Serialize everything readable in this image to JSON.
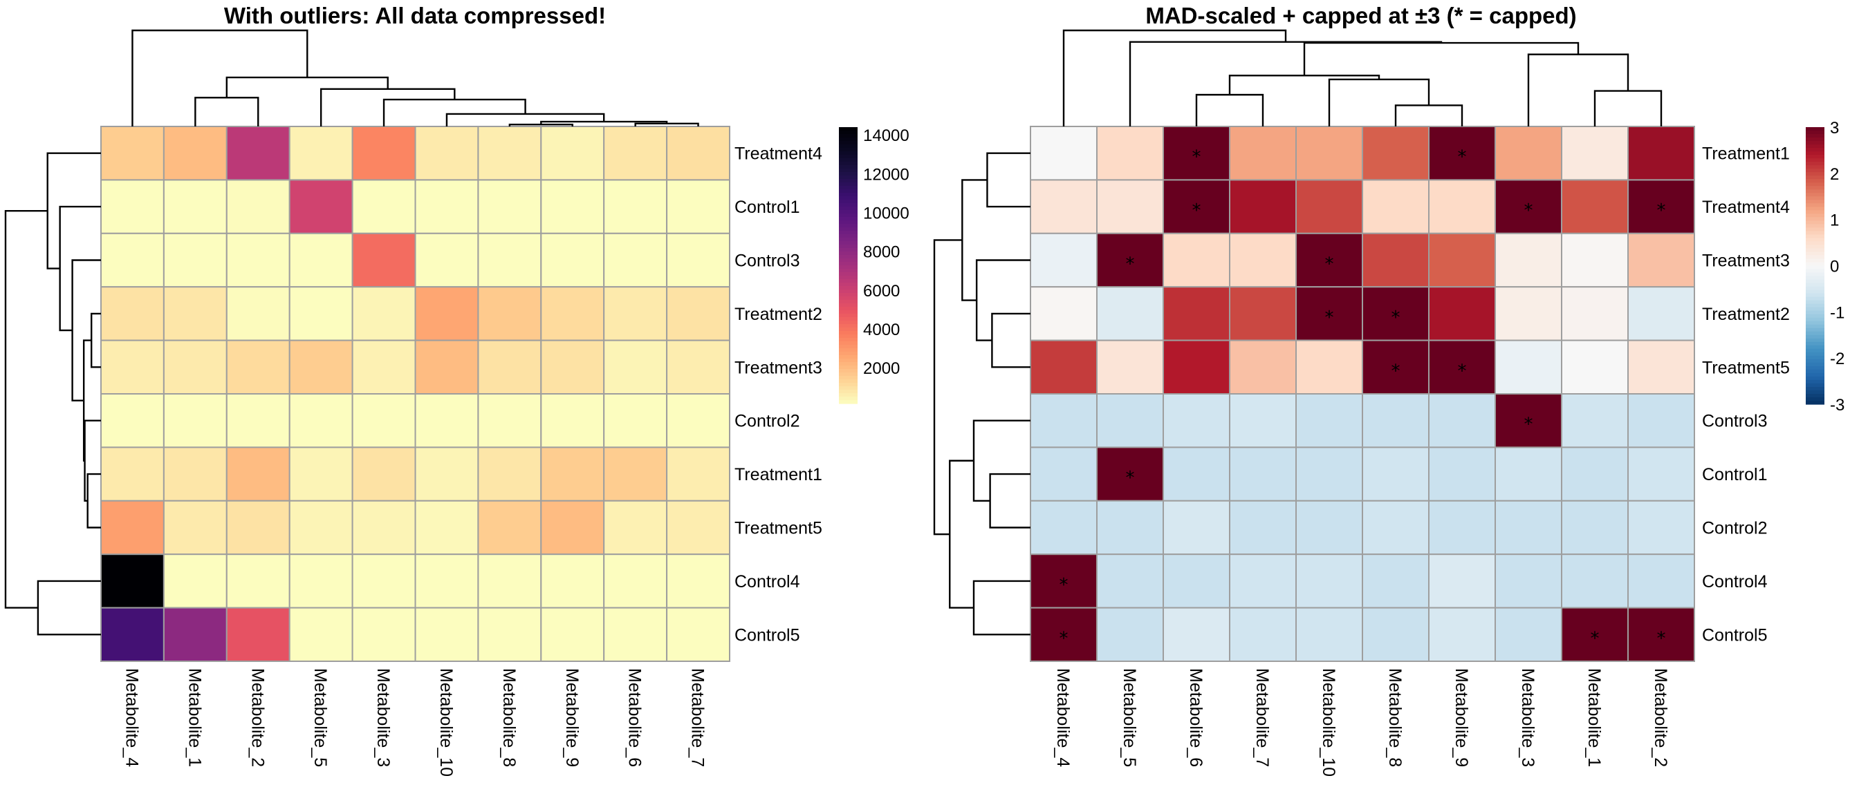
{
  "chart_data": [
    {
      "type": "heatmap",
      "title": "With outliers: All data compressed!",
      "colormap": "magma (reversed)",
      "rows": [
        "Treatment4",
        "Control1",
        "Control3",
        "Treatment2",
        "Treatment3",
        "Control2",
        "Treatment1",
        "Treatment5",
        "Control4",
        "Control5"
      ],
      "columns": [
        "Metabolite_4",
        "Metabolite_1",
        "Metabolite_2",
        "Metabolite_5",
        "Metabolite_3",
        "Metabolite_10",
        "Metabolite_8",
        "Metabolite_9",
        "Metabolite_6",
        "Metabolite_7"
      ],
      "values": [
        [
          1500,
          2000,
          6500,
          500,
          3500,
          700,
          600,
          400,
          800,
          1000
        ],
        [
          150,
          150,
          200,
          5800,
          150,
          150,
          150,
          150,
          150,
          150
        ],
        [
          150,
          150,
          150,
          150,
          4200,
          150,
          150,
          150,
          150,
          150
        ],
        [
          900,
          800,
          200,
          150,
          400,
          2600,
          1600,
          1100,
          700,
          900
        ],
        [
          600,
          700,
          1100,
          1500,
          500,
          2000,
          900,
          900,
          400,
          600
        ],
        [
          150,
          150,
          150,
          150,
          150,
          150,
          150,
          150,
          150,
          150
        ],
        [
          700,
          800,
          2000,
          400,
          900,
          400,
          800,
          1500,
          1500,
          600
        ],
        [
          2800,
          700,
          900,
          400,
          400,
          300,
          1500,
          2000,
          500,
          600
        ],
        [
          14400,
          150,
          150,
          150,
          150,
          150,
          150,
          150,
          150,
          150
        ],
        [
          10500,
          8000,
          5000,
          150,
          150,
          150,
          150,
          150,
          150,
          150
        ]
      ],
      "color_range": [
        150,
        14400
      ],
      "legend": {
        "ticks": [
          2000,
          4000,
          6000,
          8000,
          10000,
          12000,
          14000
        ],
        "tick_labels": [
          "2000",
          "4000",
          "6000",
          "8000",
          "10000",
          "12000",
          "14000"
        ],
        "placement": "right"
      },
      "col_dendrogram": {
        "merges": [
          [
            6,
            7,
            0.02
          ],
          [
            8,
            9,
            0.03
          ],
          [
            -1,
            -2,
            0.05
          ],
          [
            5,
            -3,
            0.13
          ],
          [
            4,
            -4,
            0.28
          ],
          [
            3,
            -5,
            0.39
          ],
          [
            1,
            2,
            0.3
          ],
          [
            -7,
            -6,
            0.51
          ],
          [
            0,
            -8,
            1.0
          ]
        ]
      },
      "row_dendrogram": {
        "merges": [
          [
            6,
            7,
            0.14
          ],
          [
            5,
            -1,
            0.17
          ],
          [
            3,
            4,
            0.1
          ],
          [
            -3,
            -2,
            0.18
          ],
          [
            2,
            -4,
            0.3
          ],
          [
            1,
            -5,
            0.43
          ],
          [
            0,
            -6,
            0.56
          ],
          [
            8,
            9,
            0.66
          ],
          [
            -7,
            -8,
            1.0
          ]
        ]
      }
    },
    {
      "type": "heatmap",
      "title": "MAD-scaled + capped at ±3 (* = capped)",
      "colormap": "RdBu (reversed)",
      "rows": [
        "Treatment1",
        "Treatment4",
        "Treatment3",
        "Treatment2",
        "Treatment5",
        "Control3",
        "Control1",
        "Control2",
        "Control4",
        "Control5"
      ],
      "columns": [
        "Metabolite_4",
        "Metabolite_5",
        "Metabolite_6",
        "Metabolite_7",
        "Metabolite_10",
        "Metabolite_8",
        "Metabolite_9",
        "Metabolite_3",
        "Metabolite_1",
        "Metabolite_2"
      ],
      "values": [
        [
          0.0,
          0.6,
          3,
          1.2,
          1.2,
          1.8,
          3,
          1.2,
          0.3,
          2.6
        ],
        [
          0.4,
          0.4,
          3,
          2.5,
          2.0,
          0.6,
          0.6,
          3,
          1.9,
          3
        ],
        [
          -0.2,
          3,
          0.6,
          0.6,
          3,
          2.0,
          1.8,
          0.2,
          0.05,
          0.9
        ],
        [
          0.05,
          -0.4,
          2.2,
          2.0,
          3,
          3,
          2.5,
          0.2,
          0.1,
          -0.4
        ],
        [
          2.1,
          0.4,
          2.4,
          0.9,
          0.6,
          3,
          3,
          -0.2,
          0.0,
          0.4
        ],
        [
          -0.67,
          -0.67,
          -0.6,
          -0.55,
          -0.67,
          -0.67,
          -0.67,
          3,
          -0.6,
          -0.67
        ],
        [
          -0.67,
          3,
          -0.67,
          -0.67,
          -0.67,
          -0.6,
          -0.67,
          -0.6,
          -0.67,
          -0.6
        ],
        [
          -0.67,
          -0.67,
          -0.5,
          -0.67,
          -0.67,
          -0.6,
          -0.67,
          -0.67,
          -0.67,
          -0.6
        ],
        [
          3,
          -0.67,
          -0.67,
          -0.6,
          -0.6,
          -0.67,
          -0.45,
          -0.67,
          -0.67,
          -0.67
        ],
        [
          3,
          -0.67,
          -0.45,
          -0.6,
          -0.6,
          -0.67,
          -0.5,
          -0.67,
          3,
          3
        ]
      ],
      "capped": [
        [
          0,
          0,
          1,
          0,
          0,
          0,
          1,
          0,
          0,
          0
        ],
        [
          0,
          0,
          1,
          0,
          0,
          0,
          0,
          1,
          0,
          1
        ],
        [
          0,
          1,
          0,
          0,
          1,
          0,
          0,
          0,
          0,
          0
        ],
        [
          0,
          0,
          0,
          0,
          1,
          1,
          0,
          0,
          0,
          0
        ],
        [
          0,
          0,
          0,
          0,
          0,
          1,
          1,
          0,
          0,
          0
        ],
        [
          0,
          0,
          0,
          0,
          0,
          0,
          0,
          1,
          0,
          0
        ],
        [
          0,
          1,
          0,
          0,
          0,
          0,
          0,
          0,
          0,
          0
        ],
        [
          0,
          0,
          0,
          0,
          0,
          0,
          0,
          0,
          0,
          0
        ],
        [
          1,
          0,
          0,
          0,
          0,
          0,
          0,
          0,
          0,
          0
        ],
        [
          1,
          0,
          0,
          0,
          0,
          0,
          0,
          0,
          1,
          1
        ]
      ],
      "cap_marker": "*",
      "color_range": [
        -3,
        3
      ],
      "legend": {
        "ticks": [
          3,
          2,
          1,
          0,
          -1,
          -2,
          -3
        ],
        "tick_labels": [
          "3",
          "2",
          "1",
          "0",
          "-1",
          "-2",
          "-3"
        ],
        "placement": "right"
      },
      "col_dendrogram": {
        "merges": [
          [
            5,
            6,
            0.22
          ],
          [
            4,
            -1,
            0.49
          ],
          [
            2,
            3,
            0.33
          ],
          [
            -3,
            -2,
            0.53
          ],
          [
            8,
            9,
            0.37
          ],
          [
            7,
            -5,
            0.75
          ],
          [
            -4,
            -6,
            0.87
          ],
          [
            1,
            -7,
            0.88
          ],
          [
            0,
            -8,
            1.0
          ]
        ]
      },
      "row_dendrogram": {
        "merges": [
          [
            3,
            4,
            0.4
          ],
          [
            2,
            -1,
            0.56
          ],
          [
            0,
            1,
            0.45
          ],
          [
            -3,
            -2,
            0.71
          ],
          [
            6,
            7,
            0.42
          ],
          [
            5,
            -5,
            0.59
          ],
          [
            8,
            9,
            0.59
          ],
          [
            -6,
            -7,
            0.84
          ],
          [
            -4,
            -8,
            1.0
          ]
        ]
      }
    }
  ]
}
